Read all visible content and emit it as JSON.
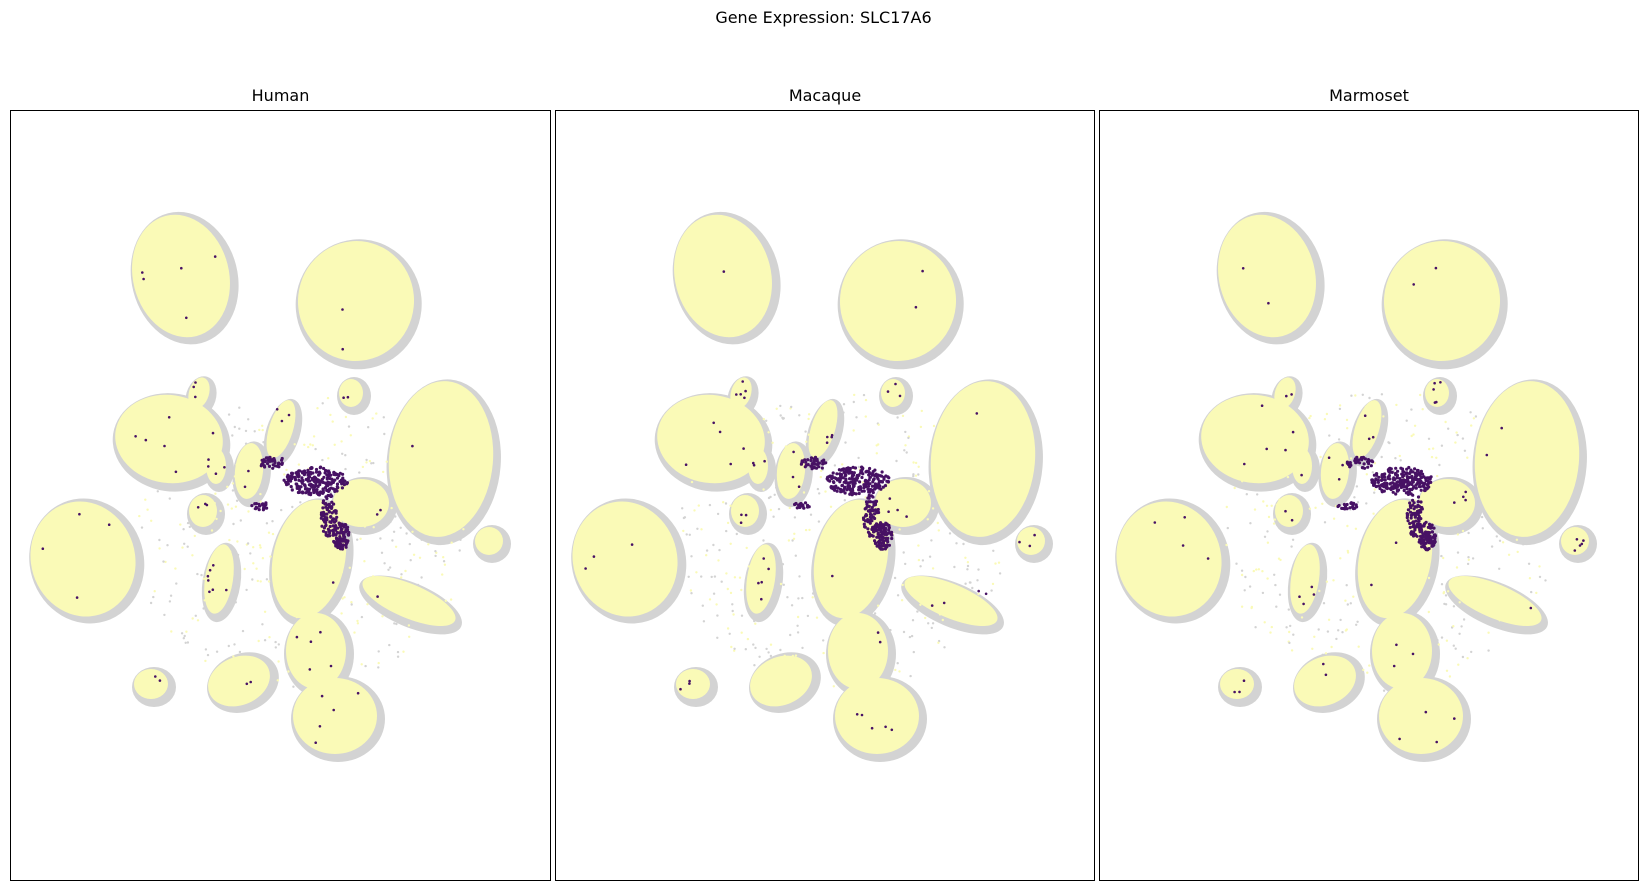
{
  "figure": {
    "suptitle": "Gene Expression: SLC17A6"
  },
  "chart_data": {
    "type": "scatter",
    "title": "Gene Expression: SLC17A6",
    "axes_visible": false,
    "colors": {
      "background_cells": "#d3d3d3",
      "low_expression": "#fafab7",
      "high_expression": "#471164"
    },
    "panels": [
      {
        "title": "Human"
      },
      {
        "title": "Macaque"
      },
      {
        "title": "Marmoset"
      }
    ]
  }
}
